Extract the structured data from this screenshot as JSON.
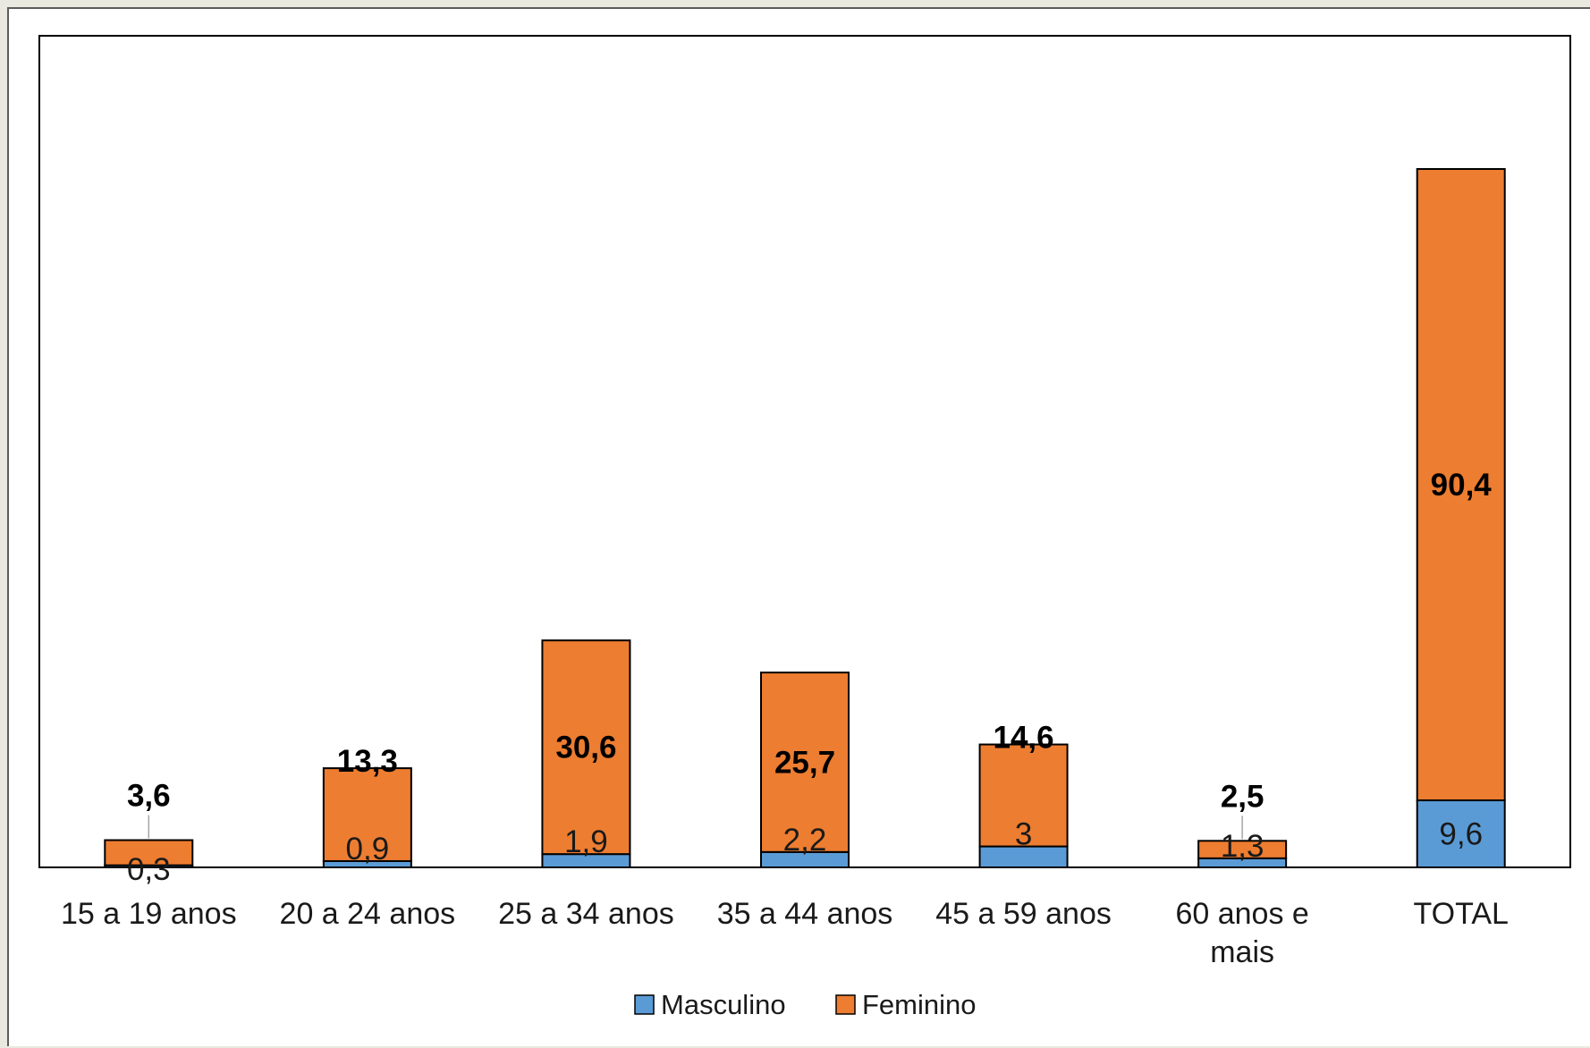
{
  "chart_data": {
    "type": "bar",
    "stacked": true,
    "categories": [
      [
        "15 a 19 anos"
      ],
      [
        "20 a 24 anos"
      ],
      [
        "25 a 34 anos"
      ],
      [
        "35 a 44 anos"
      ],
      [
        "45 a 59 anos"
      ],
      [
        "60 anos e",
        "mais"
      ],
      [
        "TOTAL"
      ]
    ],
    "series": [
      {
        "name": "Masculino",
        "color": "#5b9bd5",
        "values": [
          0.3,
          0.9,
          1.9,
          2.2,
          3,
          1.3,
          9.6
        ],
        "labels": [
          "0,3",
          "0,9",
          "1,9",
          "2,2",
          "3",
          "1,3",
          "9,6"
        ]
      },
      {
        "name": "Feminino",
        "color": "#ed7d31",
        "values": [
          3.6,
          13.3,
          30.6,
          25.7,
          14.6,
          2.5,
          90.4
        ],
        "labels": [
          "3,6",
          "13,3",
          "30,6",
          "25,7",
          "14,6",
          "2,5",
          "90,4"
        ]
      }
    ],
    "ylim": [
      0,
      100
    ],
    "grid": false,
    "legend_position": "bottom"
  }
}
